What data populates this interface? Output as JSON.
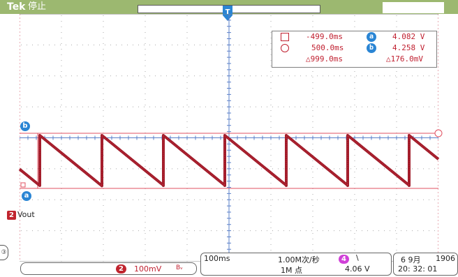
{
  "header": {
    "brand": "Tek",
    "run_state": "停止",
    "trigger_marker_label": "T"
  },
  "cursor_readout": {
    "cursor1_time": "-499.0ms",
    "cursor2_time": "500.0ms",
    "delta_time": "△999.0ms",
    "cursor_a_label": "a",
    "cursor_a_value": "4.082 V",
    "cursor_b_label": "b",
    "cursor_b_value": "4.258 V",
    "delta_voltage": "△176.0mV"
  },
  "side_markers": {
    "cursor_b_label": "b",
    "cursor_a_label": "a",
    "ch2_number": "2",
    "ch2_name": "Vout",
    "edge_label": "③"
  },
  "bottom": {
    "ch2_number": "2",
    "ch2_scale": "100mV",
    "ch2_bw_symbol": "Bᵥ",
    "timebase": "100ms",
    "sample_rate": "1.00M次/秒",
    "record_length": "1M 点",
    "trigger_source_number": "4",
    "trigger_slope_symbol": "\\",
    "trigger_level": "4.06 V",
    "date": "6 9月",
    "year": "1906",
    "time": "20: 32: 01"
  },
  "colors": {
    "header_green": "#9cb870",
    "trace_red": "#a01c2a",
    "cursor_line": "#e05060",
    "cursor_badge_blue": "#2a85d4",
    "grid_dots": "#a9a9a9",
    "center_axis": "#5a7fc8",
    "ch4_magenta": "#d040d8"
  }
}
